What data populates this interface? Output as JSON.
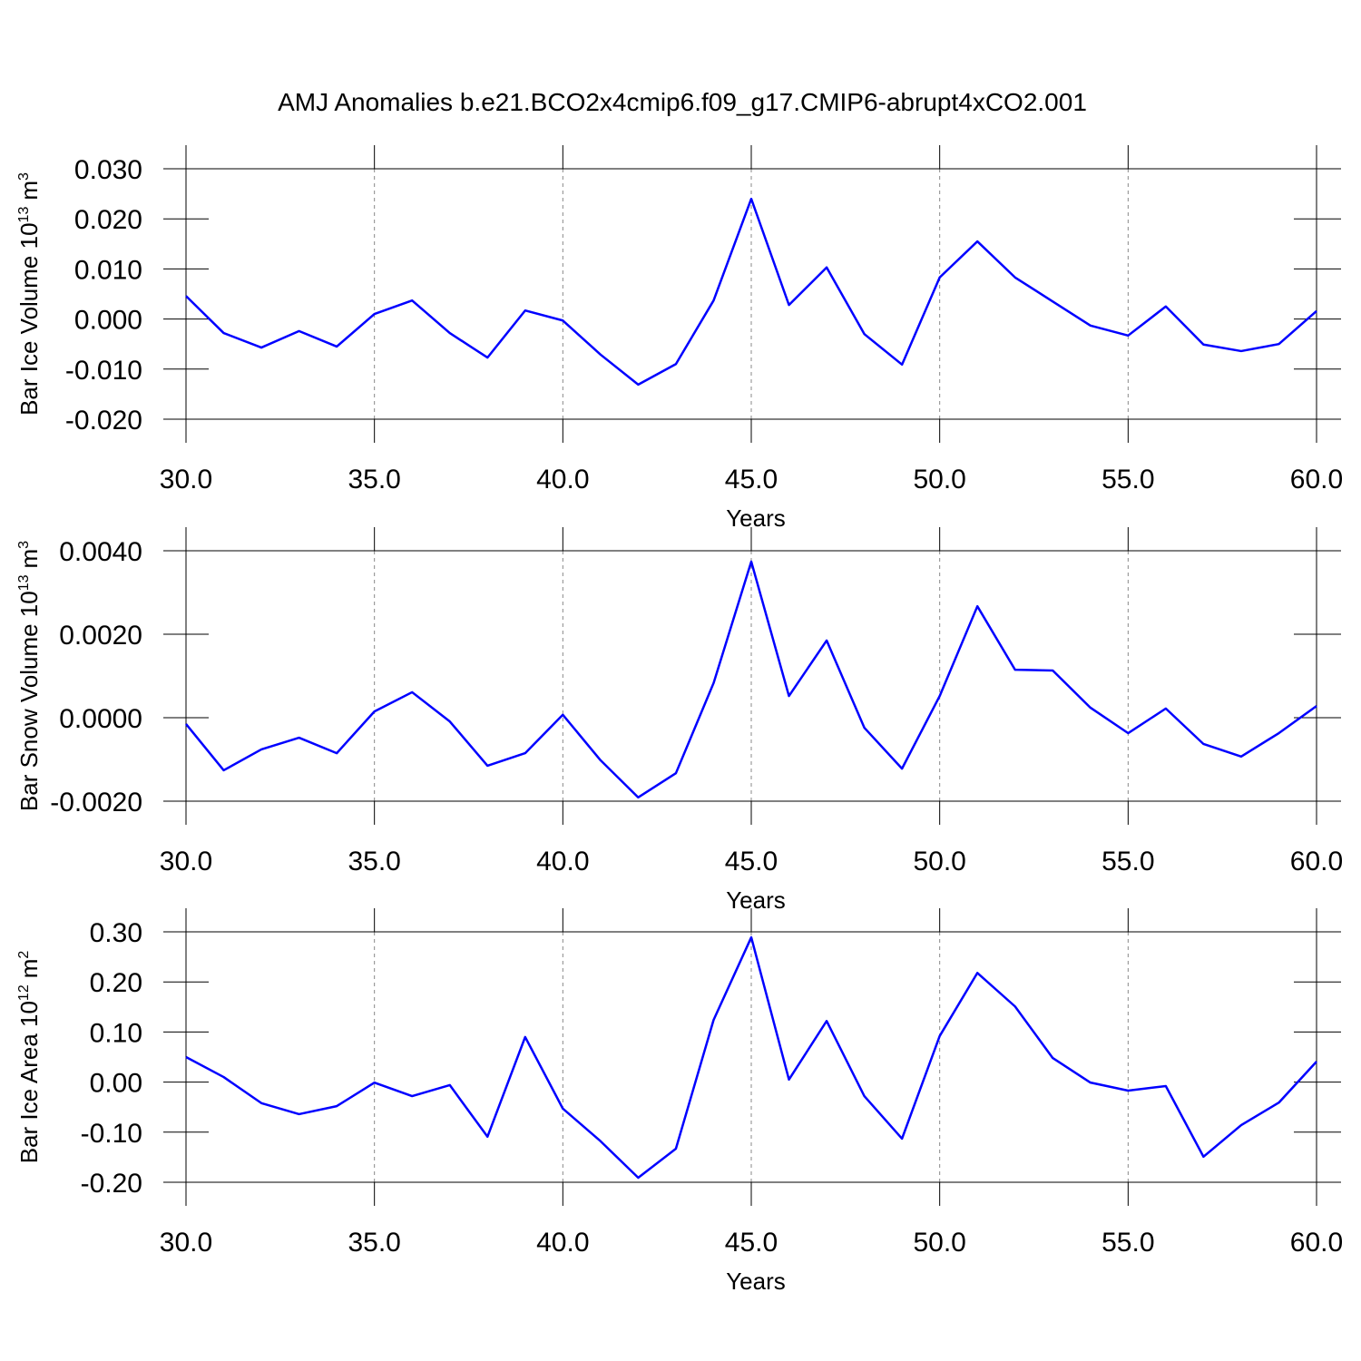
{
  "title": "AMJ Anomalies b.e21.BCO2x4cmip6.f09_g17.CMIP6-abrupt4xCO2.001",
  "chart_data": [
    {
      "type": "line",
      "ylabel": {
        "text": "Bar Ice Volume 10",
        "exp": "13",
        "unit": "m",
        "unit_exp": "3"
      },
      "xlabel": "Years",
      "x": [
        30,
        31,
        32,
        33,
        34,
        35,
        36,
        37,
        38,
        39,
        40,
        41,
        42,
        43,
        44,
        45,
        46,
        47,
        48,
        49,
        50,
        51,
        52,
        53,
        54,
        55,
        56,
        57,
        58,
        59,
        60
      ],
      "series": [
        {
          "color": "#0000ff",
          "values": [
            0.0046,
            -0.0028,
            -0.0057,
            -0.0024,
            -0.0055,
            0.001,
            0.0037,
            -0.0028,
            -0.0077,
            0.0017,
            -0.0003,
            -0.0071,
            -0.0131,
            -0.009,
            0.0037,
            0.024,
            0.0028,
            0.0103,
            -0.003,
            -0.0091,
            0.0083,
            0.0155,
            0.0083,
            0.0035,
            -0.0013,
            -0.0033,
            0.0025,
            -0.0051,
            -0.0064,
            -0.005,
            0.0016
          ]
        }
      ],
      "xlim": [
        30,
        60
      ],
      "xticks": [
        {
          "value": 30,
          "label": "30.0"
        },
        {
          "value": 35,
          "label": "35.0"
        },
        {
          "value": 40,
          "label": "40.0"
        },
        {
          "value": 45,
          "label": "45.0"
        },
        {
          "value": 50,
          "label": "50.0"
        },
        {
          "value": 55,
          "label": "55.0"
        },
        {
          "value": 60,
          "label": "60.0"
        }
      ],
      "ylim": [
        -0.02,
        0.03
      ],
      "yticks": [
        {
          "value": 0.03,
          "label": "0.030"
        },
        {
          "value": 0.02,
          "label": "0.020"
        },
        {
          "value": 0.01,
          "label": "0.010"
        },
        {
          "value": 0,
          "label": "0.000"
        },
        {
          "value": -0.01,
          "label": "-0.010"
        },
        {
          "value": -0.02,
          "label": "-0.020"
        }
      ],
      "xgrid": true
    },
    {
      "type": "line",
      "ylabel": {
        "text": "Bar Snow Volume 10",
        "exp": "13",
        "unit": "m",
        "unit_exp": "3"
      },
      "xlabel": "Years",
      "x": [
        30,
        31,
        32,
        33,
        34,
        35,
        36,
        37,
        38,
        39,
        40,
        41,
        42,
        43,
        44,
        45,
        46,
        47,
        48,
        49,
        50,
        51,
        52,
        53,
        54,
        55,
        56,
        57,
        58,
        59,
        60
      ],
      "series": [
        {
          "color": "#0000ff",
          "values": [
            -0.00015,
            -0.00126,
            -0.00076,
            -0.00048,
            -0.00085,
            0.00015,
            0.00061,
            -9e-05,
            -0.00115,
            -0.00085,
            7e-05,
            -0.00102,
            -0.00191,
            -0.00133,
            0.00083,
            0.00374,
            0.00052,
            0.00185,
            -0.00024,
            -0.00122,
            0.00052,
            0.00267,
            0.00115,
            0.00113,
            0.00024,
            -0.00037,
            0.00022,
            -0.00063,
            -0.00093,
            -0.00037,
            0.00028
          ]
        }
      ],
      "xlim": [
        30,
        60
      ],
      "xticks": [
        {
          "value": 30,
          "label": "30.0"
        },
        {
          "value": 35,
          "label": "35.0"
        },
        {
          "value": 40,
          "label": "40.0"
        },
        {
          "value": 45,
          "label": "45.0"
        },
        {
          "value": 50,
          "label": "50.0"
        },
        {
          "value": 55,
          "label": "55.0"
        },
        {
          "value": 60,
          "label": "60.0"
        }
      ],
      "ylim": [
        -0.002,
        0.004
      ],
      "yticks": [
        {
          "value": 0.004,
          "label": "0.0040"
        },
        {
          "value": 0.002,
          "label": "0.0020"
        },
        {
          "value": 0,
          "label": "0.0000"
        },
        {
          "value": -0.002,
          "label": "-0.0020"
        }
      ],
      "xgrid": true
    },
    {
      "type": "line",
      "ylabel": {
        "text": "Bar Ice Area 10",
        "exp": "12",
        "unit": "m",
        "unit_exp": "2"
      },
      "xlabel": "Years",
      "x": [
        30,
        31,
        32,
        33,
        34,
        35,
        36,
        37,
        38,
        39,
        40,
        41,
        42,
        43,
        44,
        45,
        46,
        47,
        48,
        49,
        50,
        51,
        52,
        53,
        54,
        55,
        56,
        57,
        58,
        59,
        60
      ],
      "series": [
        {
          "color": "#0000ff",
          "values": [
            0.05,
            0.01,
            -0.042,
            -0.064,
            -0.048,
            -0.001,
            -0.028,
            -0.006,
            -0.109,
            0.09,
            -0.053,
            -0.118,
            -0.191,
            -0.133,
            0.124,
            0.289,
            0.005,
            0.122,
            -0.028,
            -0.113,
            0.092,
            0.218,
            0.151,
            0.048,
            -0.001,
            -0.017,
            -0.008,
            -0.149,
            -0.086,
            -0.041,
            0.041
          ]
        }
      ],
      "xlim": [
        30,
        60
      ],
      "xticks": [
        {
          "value": 30,
          "label": "30.0"
        },
        {
          "value": 35,
          "label": "35.0"
        },
        {
          "value": 40,
          "label": "40.0"
        },
        {
          "value": 45,
          "label": "45.0"
        },
        {
          "value": 50,
          "label": "50.0"
        },
        {
          "value": 55,
          "label": "55.0"
        },
        {
          "value": 60,
          "label": "60.0"
        }
      ],
      "ylim": [
        -0.2,
        0.3
      ],
      "yticks": [
        {
          "value": 0.3,
          "label": "0.30"
        },
        {
          "value": 0.2,
          "label": "0.20"
        },
        {
          "value": 0.1,
          "label": "0.10"
        },
        {
          "value": 0,
          "label": "0.00"
        },
        {
          "value": -0.1,
          "label": "-0.10"
        },
        {
          "value": -0.2,
          "label": "-0.20"
        }
      ],
      "xgrid": true
    }
  ]
}
